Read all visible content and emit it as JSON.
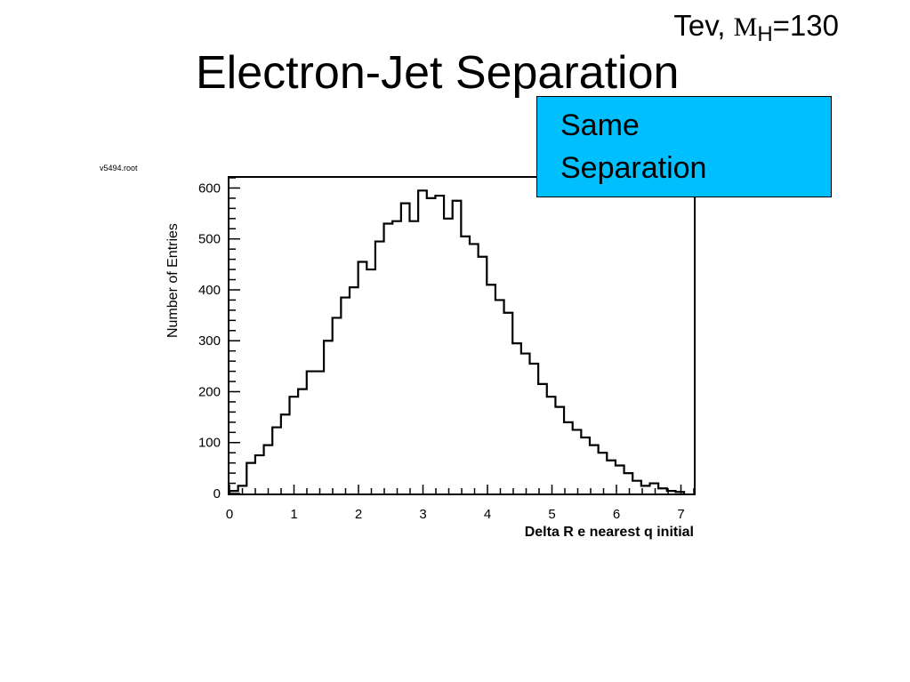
{
  "slide": {
    "top_note_prefix": "Tev,",
    "top_note_symbol": "M",
    "top_note_subscript": "H",
    "top_note_suffix": "=130",
    "title": "Electron-Jet Separation"
  },
  "callout": {
    "line1": "Same",
    "line2": "Separation",
    "color": "#00bfff"
  },
  "chart_data": {
    "type": "histogram",
    "title": "",
    "histogram_name": "v5494.root",
    "xlabel": "Delta R e nearest q initial",
    "ylabel": "Number of Entries",
    "xlim": [
      0,
      7.2
    ],
    "ylim": [
      0,
      620
    ],
    "x_ticks": [
      "0",
      "1",
      "2",
      "3",
      "4",
      "5",
      "6",
      "7"
    ],
    "y_ticks": [
      "0",
      "100",
      "200",
      "300",
      "400",
      "500",
      "600"
    ],
    "bin_width": 0.133,
    "x_start": 0,
    "values": [
      5,
      15,
      60,
      75,
      95,
      130,
      155,
      190,
      205,
      240,
      240,
      300,
      345,
      385,
      405,
      455,
      440,
      495,
      530,
      535,
      570,
      535,
      595,
      580,
      585,
      540,
      575,
      505,
      490,
      465,
      410,
      380,
      355,
      295,
      275,
      255,
      215,
      190,
      170,
      140,
      125,
      110,
      95,
      80,
      65,
      55,
      40,
      25,
      15,
      20,
      10,
      5,
      3
    ]
  }
}
